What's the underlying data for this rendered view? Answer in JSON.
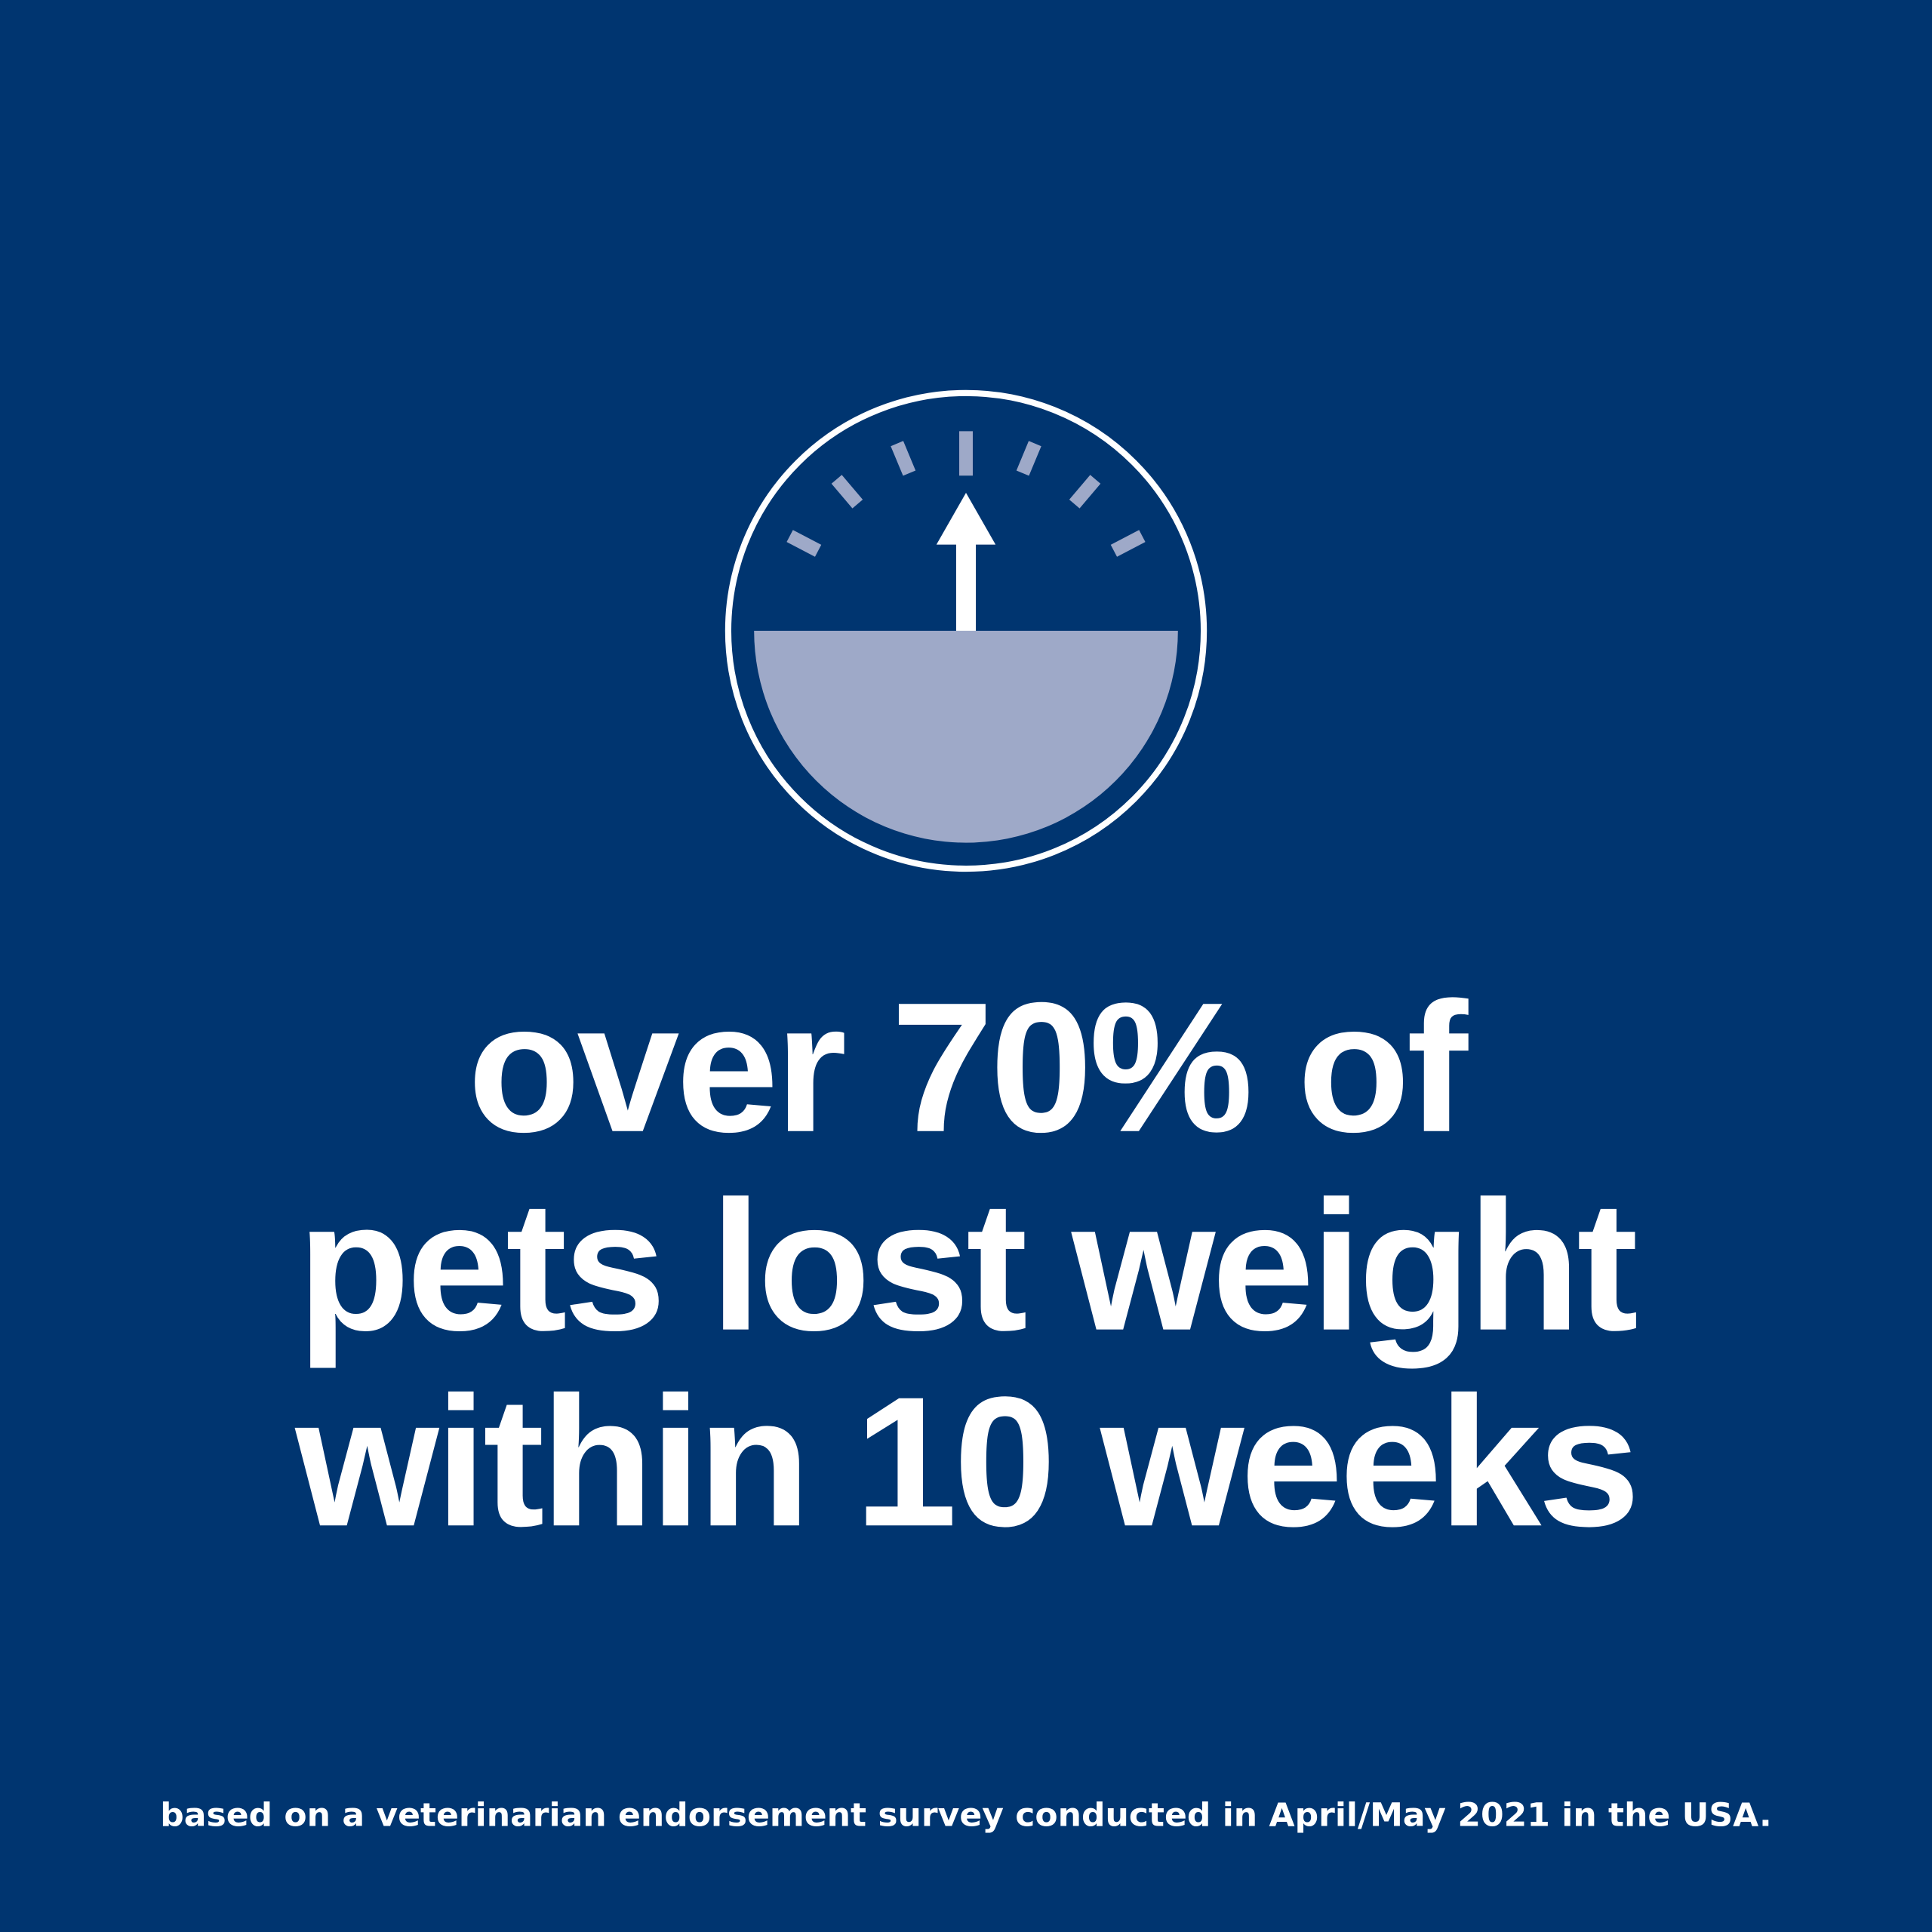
{
  "colors": {
    "background": "#003570",
    "text": "#ffffff",
    "gauge_fill": "#9EA9C8",
    "gauge_outline": "#ffffff"
  },
  "icon": "weight-scale-gauge-icon",
  "headline": {
    "line1": "over 70% of",
    "line2": "pets lost weight",
    "line3": "within 10 weeks"
  },
  "footnote": "based on a veterinarian endorsement survey conducted in April/May 2021 in the USA."
}
